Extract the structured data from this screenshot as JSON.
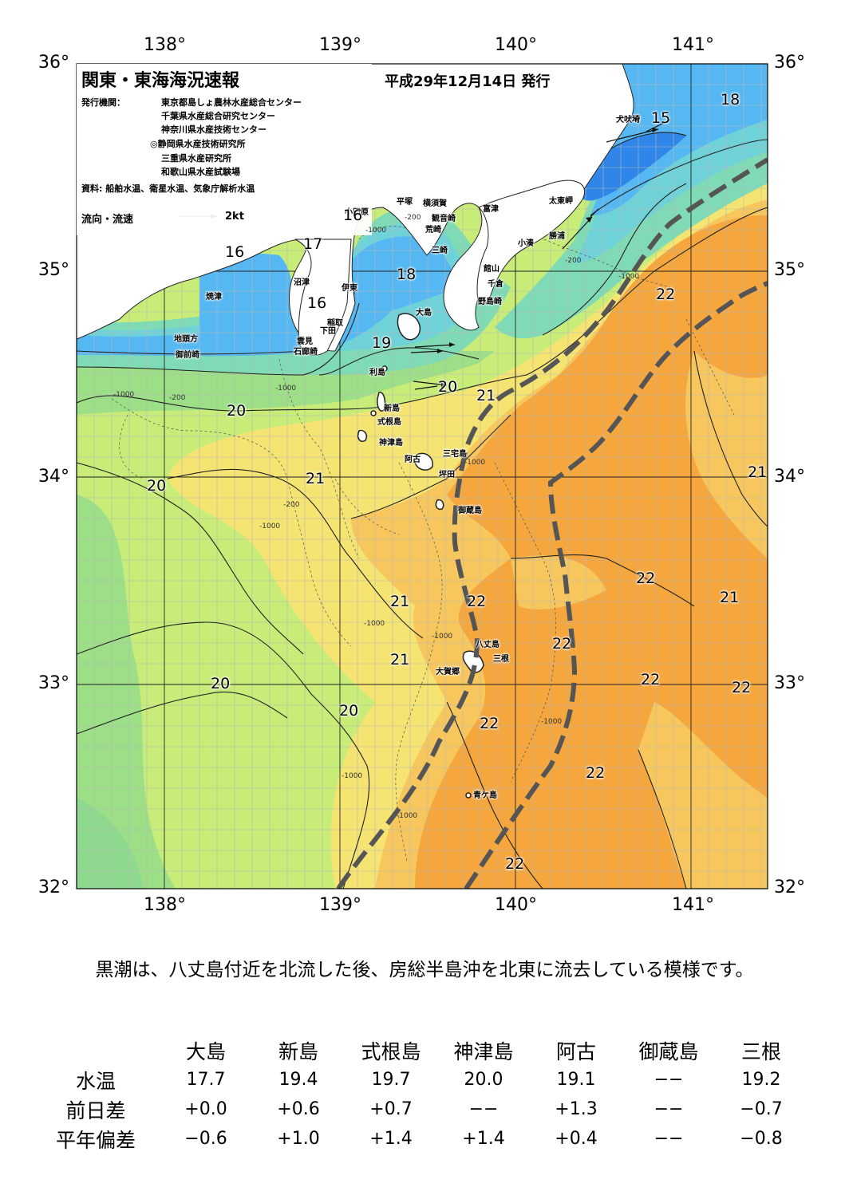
{
  "header": {
    "title": "関東・東海海況速報",
    "date": "平成29年12月14日 発行",
    "issuer_label": "発行機関：",
    "issuers": [
      "東京都島しょ農林水産総合センター",
      "千葉県水産総合研究センター",
      "神奈川県水産技術センター",
      "◎静岡県水産技術研究所",
      "三重県水産研究所",
      "和歌山県水産試験場"
    ],
    "source": "資料: 船舶水温、衛星水温、気象庁解析水温",
    "current_legend": {
      "label": "流向・流速",
      "speed": "2kt"
    }
  },
  "axes": {
    "lon_labels": [
      "138°",
      "139°",
      "140°",
      "141°"
    ],
    "lat_labels": [
      "36°",
      "35°",
      "34°",
      "33°",
      "32°"
    ]
  },
  "place_labels": [
    "小田原",
    "平塚",
    "横須賀",
    "観音崎",
    "富津",
    "荒崎",
    "三崎",
    "犬吠埼",
    "太東岬",
    "勝浦",
    "小湊",
    "館山",
    "千倉",
    "野島崎",
    "沼津",
    "伊東",
    "焼津",
    "稲取",
    "下田",
    "雲見",
    "石廊崎",
    "地頭方",
    "御前崎",
    "大島",
    "利島",
    "新島",
    "式根島",
    "神津島",
    "三宅島",
    "阿古",
    "坪田",
    "御蔵島",
    "八丈島",
    "三根",
    "大賀郷",
    "青ケ島"
  ],
  "isotherm_labels": [
    "18",
    "15",
    "16",
    "17",
    "16",
    "16",
    "18",
    "19",
    "20",
    "21",
    "20",
    "20",
    "21",
    "22",
    "21",
    "22",
    "21",
    "22",
    "21",
    "22",
    "22",
    "22",
    "20",
    "20",
    "22",
    "22",
    "22",
    "21"
  ],
  "depth_labels": [
    "-200",
    "-1000"
  ],
  "colors": {
    "t15": "#2f86e8",
    "t16": "#55b8f2",
    "t17": "#6fd2d8",
    "t18": "#7edbb5",
    "t19": "#9cdf87",
    "t20": "#c8ec78",
    "t21": "#f5e472",
    "t22": "#f7c75e",
    "t23": "#f5a63d",
    "land": "#ffffff",
    "kuroshio": "#555555"
  },
  "summary": "黒潮は、八丈島付近を北流した後、房総半島沖を北東に流去している模様です。",
  "table": {
    "columns": [
      "大島",
      "新島",
      "式根島",
      "神津島",
      "阿古",
      "御蔵島",
      "三根"
    ],
    "rows": [
      {
        "label": "水温",
        "values": [
          "17.7",
          "19.4",
          "19.7",
          "20.0",
          "19.1",
          "−−",
          "19.2"
        ]
      },
      {
        "label": "前日差",
        "values": [
          "+0.0",
          "+0.6",
          "+0.7",
          "−−",
          "+1.3",
          "−−",
          "−0.7"
        ]
      },
      {
        "label": "平年偏差",
        "values": [
          "−0.6",
          "+1.0",
          "+1.4",
          "+1.4",
          "+0.4",
          "−−",
          "−0.8"
        ]
      }
    ]
  }
}
